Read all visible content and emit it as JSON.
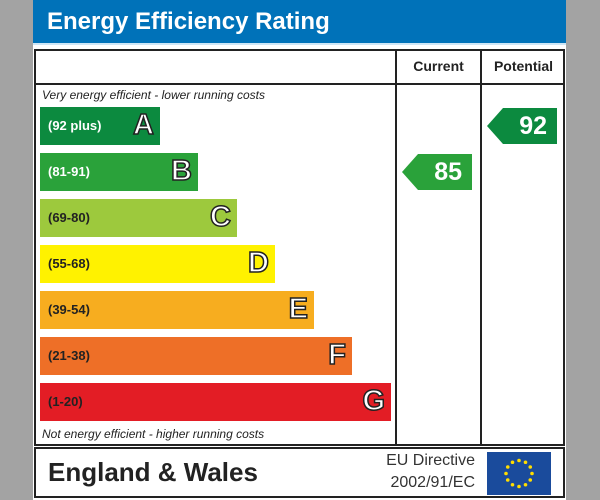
{
  "title": "Energy Efficiency Rating",
  "chart_data": {
    "type": "bar",
    "title": "Energy Efficiency Rating",
    "columns": [
      "Current",
      "Potential"
    ],
    "top_note": "Very energy efficient - lower running costs",
    "bottom_note": "Not energy efficient - higher running costs",
    "bands": [
      {
        "letter": "A",
        "range": "(92 plus)",
        "color": "#0c8a3f",
        "text_color": "#ffffff"
      },
      {
        "letter": "B",
        "range": "(81-91)",
        "color": "#2aa23a",
        "text_color": "#ffffff"
      },
      {
        "letter": "C",
        "range": "(69-80)",
        "color": "#9dc93d",
        "text_color": "#222222"
      },
      {
        "letter": "D",
        "range": "(55-68)",
        "color": "#fff200",
        "text_color": "#222222"
      },
      {
        "letter": "E",
        "range": "(39-54)",
        "color": "#f7ad1f",
        "text_color": "#222222"
      },
      {
        "letter": "F",
        "range": "(21-38)",
        "color": "#ee6f27",
        "text_color": "#222222"
      },
      {
        "letter": "G",
        "range": "(1-20)",
        "color": "#e31d25",
        "text_color": "#222222"
      }
    ],
    "current": {
      "value": 85,
      "band": "B",
      "color": "#2aa23a"
    },
    "potential": {
      "value": 92,
      "band": "A",
      "color": "#0c8a3f"
    }
  },
  "footer": {
    "region": "England & Wales",
    "directive_line1": "EU Directive",
    "directive_line2": "2002/91/EC",
    "flag_icon": "eu-flag-icon"
  }
}
